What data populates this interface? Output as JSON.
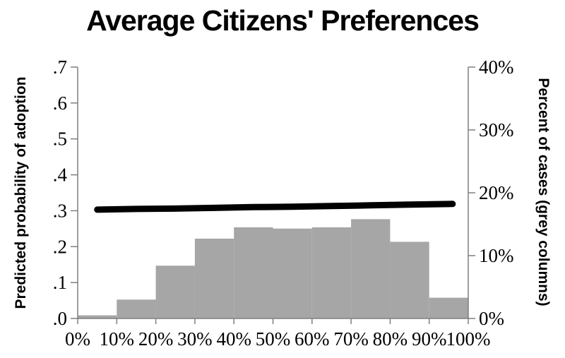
{
  "chart_data": {
    "type": "combo-bar-line",
    "title": "Average Citizens' Preferences",
    "left_axis": {
      "label": "Predicted probability of adoption",
      "ticks": [
        ".0",
        ".1",
        ".2",
        ".3",
        ".4",
        ".5",
        ".6",
        ".7"
      ],
      "range": [
        0,
        0.7
      ]
    },
    "right_axis": {
      "label": "Percent of cases (grey columns)",
      "ticks": [
        "0%",
        "10%",
        "20%",
        "30%",
        "40%"
      ],
      "range": [
        0,
        40
      ]
    },
    "x_axis": {
      "ticks": [
        "0%",
        "10%",
        "20%",
        "30%",
        "40%",
        "50%",
        "60%",
        "70%",
        "80%",
        "90%",
        "100%"
      ],
      "range": [
        0,
        100
      ]
    },
    "bars": {
      "name": "Percent of cases (grey columns)",
      "axis": "right",
      "bin_edges_pct": [
        0,
        10,
        20,
        30,
        40,
        50,
        60,
        70,
        80,
        90,
        100
      ],
      "values_pct": [
        0.5,
        3.0,
        8.4,
        12.7,
        14.5,
        14.3,
        14.5,
        15.8,
        12.2,
        3.3
      ],
      "color": "#a6a6a6"
    },
    "line": {
      "name": "Predicted probability of adoption",
      "axis": "left",
      "points": [
        [
          5,
          0.303
        ],
        [
          15,
          0.305
        ],
        [
          25,
          0.306
        ],
        [
          35,
          0.308
        ],
        [
          45,
          0.31
        ],
        [
          55,
          0.311
        ],
        [
          65,
          0.313
        ],
        [
          75,
          0.315
        ],
        [
          85,
          0.317
        ],
        [
          96,
          0.319
        ]
      ],
      "color": "#000000",
      "stroke_width": 9
    },
    "layout_hints": {
      "grid": "off",
      "legend": "none",
      "axis_line_color": "#7f7f7f",
      "background": "#ffffff"
    }
  }
}
